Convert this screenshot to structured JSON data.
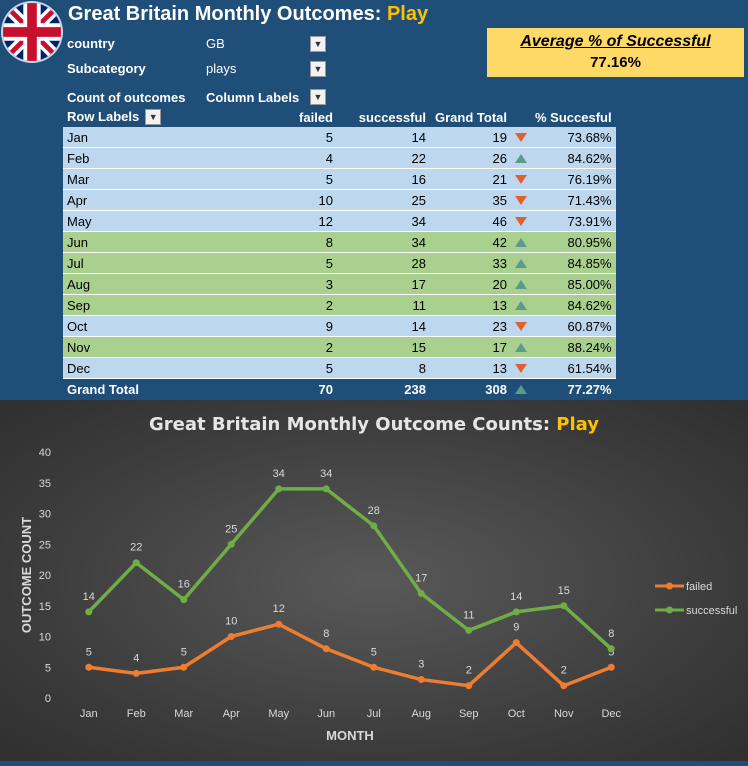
{
  "header": {
    "title_prefix": "Great Britain Monthly Outcomes: ",
    "title_accent": "Play"
  },
  "filters": {
    "country_label": "country",
    "country_value": "GB",
    "subcategory_label": "Subcategory",
    "subcategory_value": "plays",
    "count_label": "Count of outcomes",
    "column_labels": "Column Labels"
  },
  "summary": {
    "heading": "Average % of Successful",
    "value": "77.16%"
  },
  "pivot": {
    "headers": [
      "Row Labels",
      "failed",
      "successful",
      "Grand Total",
      "% Succesful"
    ],
    "rows": [
      {
        "label": "Jan",
        "failed": "5",
        "successful": "14",
        "total": "19",
        "trend": "down",
        "pct": "73.68%",
        "color": "blue"
      },
      {
        "label": "Feb",
        "failed": "4",
        "successful": "22",
        "total": "26",
        "trend": "up",
        "pct": "84.62%",
        "color": "blue"
      },
      {
        "label": "Mar",
        "failed": "5",
        "successful": "16",
        "total": "21",
        "trend": "down",
        "pct": "76.19%",
        "color": "blue"
      },
      {
        "label": "Apr",
        "failed": "10",
        "successful": "25",
        "total": "35",
        "trend": "down",
        "pct": "71.43%",
        "color": "blue"
      },
      {
        "label": "May",
        "failed": "12",
        "successful": "34",
        "total": "46",
        "trend": "down",
        "pct": "73.91%",
        "color": "blue"
      },
      {
        "label": "Jun",
        "failed": "8",
        "successful": "34",
        "total": "42",
        "trend": "up",
        "pct": "80.95%",
        "color": "green"
      },
      {
        "label": "Jul",
        "failed": "5",
        "successful": "28",
        "total": "33",
        "trend": "up",
        "pct": "84.85%",
        "color": "green"
      },
      {
        "label": "Aug",
        "failed": "3",
        "successful": "17",
        "total": "20",
        "trend": "up",
        "pct": "85.00%",
        "color": "green"
      },
      {
        "label": "Sep",
        "failed": "2",
        "successful": "11",
        "total": "13",
        "trend": "up",
        "pct": "84.62%",
        "color": "green"
      },
      {
        "label": "Oct",
        "failed": "9",
        "successful": "14",
        "total": "23",
        "trend": "down",
        "pct": "60.87%",
        "color": "blue"
      },
      {
        "label": "Nov",
        "failed": "2",
        "successful": "15",
        "total": "17",
        "trend": "up",
        "pct": "88.24%",
        "color": "green"
      },
      {
        "label": "Dec",
        "failed": "5",
        "successful": "8",
        "total": "13",
        "trend": "down",
        "pct": "61.54%",
        "color": "blue"
      }
    ],
    "total": {
      "label": "Grand Total",
      "failed": "70",
      "successful": "238",
      "total": "308",
      "trend": "up",
      "pct": "77.27%"
    }
  },
  "chart_data": {
    "type": "line",
    "title_prefix": "Great Britain Monthly Outcome Counts: ",
    "title_accent": "Play",
    "xlabel": "MONTH",
    "ylabel": "OUTCOME COUNT",
    "categories": [
      "Jan",
      "Feb",
      "Mar",
      "Apr",
      "May",
      "Jun",
      "Jul",
      "Aug",
      "Sep",
      "Oct",
      "Nov",
      "Dec"
    ],
    "ylim": [
      0,
      40
    ],
    "yticks": [
      0,
      5,
      10,
      15,
      20,
      25,
      30,
      35,
      40
    ],
    "grid": false,
    "legend": "right",
    "series": [
      {
        "name": "failed",
        "color": "#ed7d31",
        "values": [
          5,
          4,
          5,
          10,
          12,
          8,
          5,
          3,
          2,
          9,
          2,
          5
        ]
      },
      {
        "name": "successful",
        "color": "#70ad47",
        "values": [
          14,
          22,
          16,
          25,
          34,
          34,
          28,
          17,
          11,
          14,
          15,
          8
        ]
      }
    ]
  },
  "colors": {
    "background": "#1f4e79",
    "accent": "#ffc000",
    "row_blue": "#bdd7ee",
    "row_green": "#a9d08e",
    "up_icon": "#5b9b8b",
    "down_icon": "#e06030"
  }
}
